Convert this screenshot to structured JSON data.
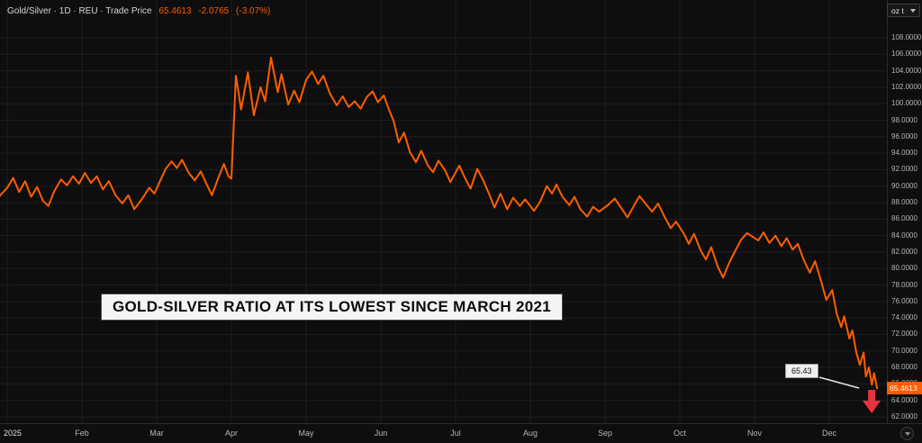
{
  "legend": {
    "title": "Gold/Silver · 1D · REU · Trade Price",
    "price": "65.4613",
    "change": "-2.0765",
    "change_pct": "(-3.07%)"
  },
  "toolbar": {
    "unit_label": "oz t"
  },
  "annotation": {
    "text": "GOLD-SILVER RATIO AT ITS LOWEST SINCE MARCH 2021"
  },
  "callout": {
    "label": "65.43"
  },
  "price_scale": {
    "last_price_label": "65.4613"
  },
  "colors": {
    "background": "#0e0e0e",
    "grid": "#1e1e1e",
    "line": "#ff5d00",
    "down": "#e8323f",
    "axis_text": "#b5b5b5"
  },
  "chart_data": {
    "type": "line",
    "title": "Gold/Silver ratio, daily trade price",
    "legend_entries": [
      "Gold/Silver · 1D · REU · Trade Price"
    ],
    "annotations": [
      "GOLD-SILVER RATIO AT ITS LOWEST SINCE MARCH 2021",
      "65.43"
    ],
    "x_ticks": [
      "2025",
      "Feb",
      "Mar",
      "Apr",
      "May",
      "Jun",
      "Jul",
      "Aug",
      "Sep",
      "Oct",
      "Nov",
      "Dec"
    ],
    "y_ticks": [
      "108.0000",
      "106.0000",
      "104.0000",
      "102.0000",
      "100.0000",
      "98.0000",
      "96.0000",
      "94.0000",
      "92.0000",
      "90.0000",
      "88.0000",
      "86.0000",
      "84.0000",
      "82.0000",
      "80.0000",
      "78.0000",
      "76.0000",
      "74.0000",
      "72.0000",
      "70.0000",
      "68.0000",
      "66.0000",
      "64.0000",
      "62.0000"
    ],
    "ylim": [
      62,
      108
    ],
    "xlabel": "",
    "ylabel": "",
    "grid": true,
    "legend_position": "top-left",
    "last_value": 65.4613,
    "last_change": -2.0765,
    "last_change_pct": -3.07,
    "series": [
      {
        "name": "Gold/Silver Trade Price",
        "color": "#ff5d00",
        "points": [
          [
            -0.1,
            88.8
          ],
          [
            0.0,
            89.8
          ],
          [
            0.08,
            91.0
          ],
          [
            0.16,
            89.3
          ],
          [
            0.24,
            90.6
          ],
          [
            0.32,
            88.7
          ],
          [
            0.4,
            89.9
          ],
          [
            0.48,
            88.2
          ],
          [
            0.55,
            87.6
          ],
          [
            0.63,
            89.4
          ],
          [
            0.72,
            90.8
          ],
          [
            0.8,
            90.1
          ],
          [
            0.88,
            91.2
          ],
          [
            0.96,
            90.3
          ],
          [
            1.04,
            91.6
          ],
          [
            1.12,
            90.4
          ],
          [
            1.2,
            91.2
          ],
          [
            1.28,
            89.6
          ],
          [
            1.36,
            90.6
          ],
          [
            1.45,
            88.9
          ],
          [
            1.54,
            87.9
          ],
          [
            1.62,
            88.9
          ],
          [
            1.7,
            87.2
          ],
          [
            1.8,
            88.4
          ],
          [
            1.9,
            89.8
          ],
          [
            1.97,
            89.1
          ],
          [
            2.05,
            90.7
          ],
          [
            2.12,
            92.1
          ],
          [
            2.2,
            93.0
          ],
          [
            2.27,
            92.2
          ],
          [
            2.34,
            93.2
          ],
          [
            2.43,
            91.6
          ],
          [
            2.51,
            90.7
          ],
          [
            2.59,
            91.8
          ],
          [
            2.67,
            90.2
          ],
          [
            2.74,
            88.9
          ],
          [
            2.82,
            90.9
          ],
          [
            2.9,
            92.7
          ],
          [
            2.96,
            91.2
          ],
          [
            3.0,
            90.9
          ],
          [
            3.06,
            103.4
          ],
          [
            3.13,
            99.3
          ],
          [
            3.22,
            103.8
          ],
          [
            3.3,
            98.6
          ],
          [
            3.39,
            102.0
          ],
          [
            3.45,
            100.3
          ],
          [
            3.53,
            105.6
          ],
          [
            3.62,
            101.4
          ],
          [
            3.67,
            103.6
          ],
          [
            3.76,
            99.9
          ],
          [
            3.84,
            101.6
          ],
          [
            3.91,
            100.2
          ],
          [
            4.0,
            102.9
          ],
          [
            4.08,
            103.9
          ],
          [
            4.16,
            102.4
          ],
          [
            4.23,
            103.4
          ],
          [
            4.32,
            101.2
          ],
          [
            4.41,
            99.8
          ],
          [
            4.49,
            100.9
          ],
          [
            4.57,
            99.6
          ],
          [
            4.65,
            100.3
          ],
          [
            4.73,
            99.4
          ],
          [
            4.81,
            100.8
          ],
          [
            4.89,
            101.5
          ],
          [
            4.96,
            100.2
          ],
          [
            5.04,
            101.0
          ],
          [
            5.1,
            99.5
          ],
          [
            5.17,
            97.9
          ],
          [
            5.24,
            95.3
          ],
          [
            5.31,
            96.5
          ],
          [
            5.39,
            94.1
          ],
          [
            5.47,
            92.9
          ],
          [
            5.54,
            94.3
          ],
          [
            5.63,
            92.5
          ],
          [
            5.7,
            91.7
          ],
          [
            5.77,
            93.1
          ],
          [
            5.86,
            91.9
          ],
          [
            5.93,
            90.5
          ],
          [
            6.05,
            92.5
          ],
          [
            6.13,
            90.9
          ],
          [
            6.2,
            89.7
          ],
          [
            6.29,
            92.1
          ],
          [
            6.37,
            90.7
          ],
          [
            6.45,
            89.0
          ],
          [
            6.52,
            87.4
          ],
          [
            6.6,
            89.1
          ],
          [
            6.69,
            87.2
          ],
          [
            6.77,
            88.6
          ],
          [
            6.86,
            87.6
          ],
          [
            6.93,
            88.4
          ],
          [
            7.05,
            87.0
          ],
          [
            7.13,
            88.1
          ],
          [
            7.22,
            90.0
          ],
          [
            7.29,
            89.1
          ],
          [
            7.35,
            90.2
          ],
          [
            7.43,
            88.7
          ],
          [
            7.52,
            87.7
          ],
          [
            7.59,
            88.7
          ],
          [
            7.67,
            87.2
          ],
          [
            7.76,
            86.3
          ],
          [
            7.84,
            87.5
          ],
          [
            7.92,
            86.9
          ],
          [
            8.05,
            87.8
          ],
          [
            8.13,
            88.5
          ],
          [
            8.22,
            87.3
          ],
          [
            8.3,
            86.2
          ],
          [
            8.39,
            87.7
          ],
          [
            8.46,
            88.8
          ],
          [
            8.54,
            87.9
          ],
          [
            8.63,
            86.9
          ],
          [
            8.71,
            87.9
          ],
          [
            8.8,
            86.2
          ],
          [
            8.88,
            84.9
          ],
          [
            8.95,
            85.7
          ],
          [
            9.05,
            84.3
          ],
          [
            9.12,
            83.0
          ],
          [
            9.19,
            84.2
          ],
          [
            9.28,
            82.2
          ],
          [
            9.35,
            81.1
          ],
          [
            9.42,
            82.6
          ],
          [
            9.51,
            80.2
          ],
          [
            9.58,
            78.9
          ],
          [
            9.66,
            80.7
          ],
          [
            9.74,
            82.1
          ],
          [
            9.82,
            83.5
          ],
          [
            9.9,
            84.3
          ],
          [
            10.05,
            83.4
          ],
          [
            10.12,
            84.4
          ],
          [
            10.2,
            83.1
          ],
          [
            10.28,
            84.0
          ],
          [
            10.36,
            82.7
          ],
          [
            10.43,
            83.7
          ],
          [
            10.51,
            82.3
          ],
          [
            10.58,
            83.0
          ],
          [
            10.66,
            81.0
          ],
          [
            10.74,
            79.5
          ],
          [
            10.81,
            80.9
          ],
          [
            10.89,
            78.5
          ],
          [
            10.96,
            76.2
          ],
          [
            11.04,
            77.4
          ],
          [
            11.1,
            74.5
          ],
          [
            11.16,
            72.9
          ],
          [
            11.2,
            74.2
          ],
          [
            11.27,
            71.5
          ],
          [
            11.31,
            72.5
          ],
          [
            11.36,
            69.9
          ],
          [
            11.41,
            68.3
          ],
          [
            11.46,
            69.8
          ],
          [
            11.49,
            66.9
          ],
          [
            11.53,
            68.0
          ],
          [
            11.57,
            65.9
          ],
          [
            11.6,
            67.3
          ],
          [
            11.64,
            65.4613
          ]
        ]
      }
    ]
  }
}
